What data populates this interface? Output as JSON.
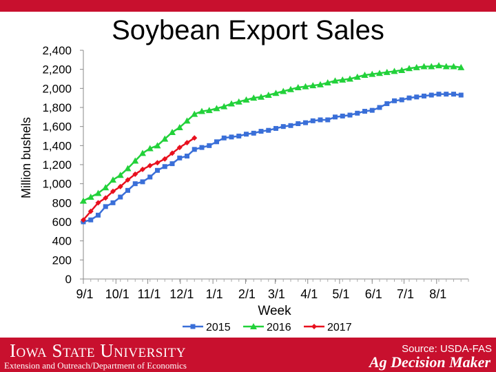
{
  "page": {
    "title": "Soybean Export Sales",
    "university": "Iowa State University",
    "department": "Extension and Outreach/Department of Economics",
    "source": "Source: USDA-FAS",
    "brand": "Ag Decision Maker",
    "accent_color": "#c8102e"
  },
  "chart_data": {
    "type": "line",
    "title": "Soybean Export Sales",
    "xlabel": "Week",
    "ylabel": "Million bushels",
    "ylim": [
      0,
      2400
    ],
    "yticks": [
      0,
      200,
      400,
      600,
      800,
      1000,
      1200,
      1400,
      1600,
      1800,
      2000,
      2200,
      2400
    ],
    "ytick_labels": [
      "0",
      "200",
      "400",
      "600",
      "800",
      "1,000",
      "1,200",
      "1,400",
      "1,600",
      "1,800",
      "2,000",
      "2,200",
      "2,400"
    ],
    "xlim": [
      0,
      52
    ],
    "xticks": [
      0,
      4.4,
      8.7,
      13.1,
      17.5,
      21.9,
      25.9,
      30.3,
      34.6,
      39,
      43.3,
      47.7
    ],
    "xtick_labels": [
      "9/1",
      "10/1",
      "11/1",
      "12/1",
      "1/1",
      "2/1",
      "3/1",
      "4/1",
      "5/1",
      "6/1",
      "7/1",
      "8/1"
    ],
    "grid": false,
    "legend": "bottom",
    "series": [
      {
        "name": "2015",
        "color": "#3a6fd8",
        "marker": "square",
        "values": [
          600,
          620,
          670,
          760,
          800,
          860,
          930,
          1000,
          1020,
          1070,
          1140,
          1180,
          1210,
          1270,
          1290,
          1360,
          1380,
          1400,
          1440,
          1480,
          1490,
          1500,
          1520,
          1530,
          1550,
          1560,
          1580,
          1600,
          1610,
          1630,
          1640,
          1660,
          1670,
          1670,
          1700,
          1710,
          1720,
          1740,
          1760,
          1770,
          1800,
          1840,
          1870,
          1880,
          1900,
          1910,
          1920,
          1930,
          1940,
          1940,
          1940,
          1930
        ]
      },
      {
        "name": "2016",
        "color": "#22d13a",
        "marker": "triangle",
        "values": [
          820,
          860,
          900,
          960,
          1040,
          1090,
          1160,
          1240,
          1320,
          1370,
          1400,
          1470,
          1540,
          1590,
          1660,
          1730,
          1760,
          1770,
          1790,
          1810,
          1840,
          1860,
          1880,
          1900,
          1910,
          1930,
          1950,
          1970,
          1990,
          2010,
          2020,
          2030,
          2040,
          2060,
          2080,
          2090,
          2100,
          2120,
          2140,
          2150,
          2160,
          2170,
          2180,
          2190,
          2210,
          2220,
          2230,
          2230,
          2240,
          2230,
          2230,
          2220
        ]
      },
      {
        "name": "2017",
        "color": "#e8101e",
        "marker": "diamond",
        "values": [
          620,
          710,
          800,
          850,
          920,
          970,
          1040,
          1100,
          1150,
          1190,
          1220,
          1260,
          1320,
          1380,
          1430,
          1480
        ]
      }
    ]
  }
}
